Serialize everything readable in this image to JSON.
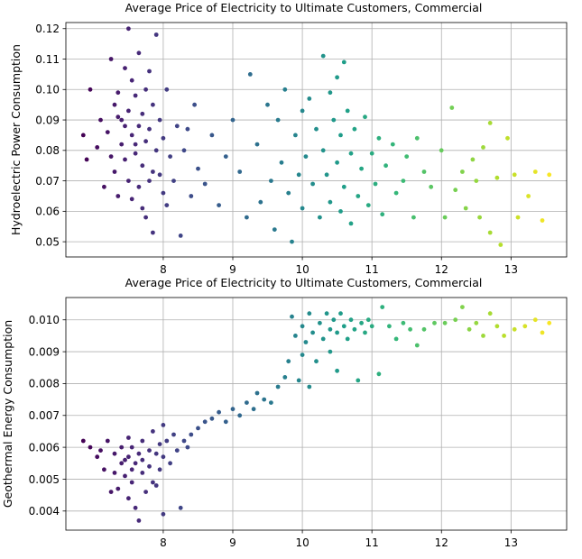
{
  "chart_data": [
    {
      "type": "scatter",
      "title": "Average Price of Electricity to Ultimate Customers, Commercial",
      "xlabel": "",
      "ylabel": "Hydroelectric Power Consumption",
      "xlim": [
        6.6,
        13.8
      ],
      "ylim": [
        0.045,
        0.122
      ],
      "xticks": [
        8,
        9,
        10,
        11,
        12,
        13
      ],
      "yticks": [
        0.05,
        0.06,
        0.07,
        0.08,
        0.09,
        0.1,
        0.11,
        0.12
      ],
      "yticklabels": [
        "0.05",
        "0.06",
        "0.07",
        "0.08",
        "0.09",
        "0.10",
        "0.11",
        "0.12"
      ],
      "grid": true,
      "colormap": "viridis",
      "color_by": "x",
      "points": [
        [
          6.85,
          0.085
        ],
        [
          6.9,
          0.077
        ],
        [
          6.95,
          0.1
        ],
        [
          7.05,
          0.081
        ],
        [
          7.1,
          0.09
        ],
        [
          7.15,
          0.068
        ],
        [
          7.2,
          0.086
        ],
        [
          7.25,
          0.078
        ],
        [
          7.25,
          0.11
        ],
        [
          7.3,
          0.095
        ],
        [
          7.3,
          0.073
        ],
        [
          7.35,
          0.099
        ],
        [
          7.35,
          0.065
        ],
        [
          7.4,
          0.09
        ],
        [
          7.4,
          0.082
        ],
        [
          7.45,
          0.107
        ],
        [
          7.45,
          0.077
        ],
        [
          7.5,
          0.12
        ],
        [
          7.5,
          0.093
        ],
        [
          7.5,
          0.07
        ],
        [
          7.55,
          0.103
        ],
        [
          7.55,
          0.085
        ],
        [
          7.55,
          0.064
        ],
        [
          7.6,
          0.098
        ],
        [
          7.6,
          0.079
        ],
        [
          7.65,
          0.112
        ],
        [
          7.65,
          0.088
        ],
        [
          7.65,
          0.068
        ],
        [
          7.7,
          0.092
        ],
        [
          7.7,
          0.075
        ],
        [
          7.75,
          0.1
        ],
        [
          7.75,
          0.083
        ],
        [
          7.75,
          0.058
        ],
        [
          7.8,
          0.106
        ],
        [
          7.8,
          0.087
        ],
        [
          7.8,
          0.07
        ],
        [
          7.85,
          0.053
        ],
        [
          7.85,
          0.095
        ],
        [
          7.9,
          0.118
        ],
        [
          7.9,
          0.08
        ],
        [
          7.95,
          0.072
        ],
        [
          7.95,
          0.09
        ],
        [
          8.0,
          0.084
        ],
        [
          8.0,
          0.066
        ],
        [
          8.05,
          0.1
        ],
        [
          8.05,
          0.062
        ],
        [
          8.1,
          0.078
        ],
        [
          8.15,
          0.07
        ],
        [
          8.2,
          0.088
        ],
        [
          8.25,
          0.052
        ],
        [
          7.35,
          0.091
        ],
        [
          7.45,
          0.088
        ],
        [
          7.6,
          0.082
        ],
        [
          7.7,
          0.061
        ],
        [
          7.85,
          0.073
        ],
        [
          8.3,
          0.08
        ],
        [
          8.35,
          0.087
        ],
        [
          8.4,
          0.065
        ],
        [
          8.45,
          0.095
        ],
        [
          8.5,
          0.074
        ],
        [
          8.6,
          0.069
        ],
        [
          8.7,
          0.085
        ],
        [
          8.8,
          0.062
        ],
        [
          8.9,
          0.078
        ],
        [
          9.0,
          0.09
        ],
        [
          9.1,
          0.073
        ],
        [
          9.2,
          0.058
        ],
        [
          9.25,
          0.105
        ],
        [
          9.35,
          0.082
        ],
        [
          9.4,
          0.063
        ],
        [
          9.5,
          0.095
        ],
        [
          9.55,
          0.07
        ],
        [
          9.6,
          0.054
        ],
        [
          9.65,
          0.09
        ],
        [
          9.7,
          0.076
        ],
        [
          9.75,
          0.1
        ],
        [
          9.8,
          0.066
        ],
        [
          9.85,
          0.05
        ],
        [
          9.9,
          0.085
        ],
        [
          9.95,
          0.072
        ],
        [
          10.0,
          0.093
        ],
        [
          10.0,
          0.061
        ],
        [
          10.05,
          0.078
        ],
        [
          10.1,
          0.097
        ],
        [
          10.15,
          0.069
        ],
        [
          10.2,
          0.087
        ],
        [
          10.25,
          0.058
        ],
        [
          10.3,
          0.111
        ],
        [
          10.3,
          0.08
        ],
        [
          10.35,
          0.072
        ],
        [
          10.4,
          0.099
        ],
        [
          10.4,
          0.063
        ],
        [
          10.45,
          0.09
        ],
        [
          10.5,
          0.076
        ],
        [
          10.5,
          0.104
        ],
        [
          10.55,
          0.06
        ],
        [
          10.55,
          0.085
        ],
        [
          10.6,
          0.109
        ],
        [
          10.6,
          0.068
        ],
        [
          10.65,
          0.093
        ],
        [
          10.7,
          0.079
        ],
        [
          10.7,
          0.056
        ],
        [
          10.75,
          0.087
        ],
        [
          10.8,
          0.065
        ],
        [
          10.85,
          0.074
        ],
        [
          10.9,
          0.091
        ],
        [
          10.95,
          0.062
        ],
        [
          11.0,
          0.079
        ],
        [
          11.05,
          0.069
        ],
        [
          11.1,
          0.084
        ],
        [
          11.15,
          0.059
        ],
        [
          11.2,
          0.075
        ],
        [
          11.3,
          0.082
        ],
        [
          11.35,
          0.066
        ],
        [
          11.45,
          0.07
        ],
        [
          11.5,
          0.078
        ],
        [
          11.6,
          0.058
        ],
        [
          11.65,
          0.084
        ],
        [
          11.75,
          0.073
        ],
        [
          11.85,
          0.068
        ],
        [
          12.0,
          0.08
        ],
        [
          12.05,
          0.058
        ],
        [
          12.15,
          0.094
        ],
        [
          12.2,
          0.067
        ],
        [
          12.3,
          0.073
        ],
        [
          12.35,
          0.061
        ],
        [
          12.45,
          0.077
        ],
        [
          12.5,
          0.07
        ],
        [
          12.55,
          0.058
        ],
        [
          12.6,
          0.081
        ],
        [
          12.7,
          0.089
        ],
        [
          12.7,
          0.053
        ],
        [
          12.8,
          0.071
        ],
        [
          12.85,
          0.049
        ],
        [
          12.95,
          0.084
        ],
        [
          13.05,
          0.072
        ],
        [
          13.1,
          0.058
        ],
        [
          13.25,
          0.065
        ],
        [
          13.35,
          0.073
        ],
        [
          13.45,
          0.057
        ],
        [
          13.55,
          0.072
        ]
      ]
    },
    {
      "type": "scatter",
      "title": "Average Price of Electricity to Ultimate Customers, Commercial",
      "xlabel": "",
      "ylabel": "Geothermal Energy Consumption",
      "xlim": [
        6.6,
        13.8
      ],
      "ylim": [
        0.0034,
        0.0107
      ],
      "xticks": [
        8,
        9,
        10,
        11,
        12,
        13
      ],
      "yticks": [
        0.004,
        0.005,
        0.006,
        0.007,
        0.008,
        0.009,
        0.01
      ],
      "yticklabels": [
        "0.004",
        "0.005",
        "0.006",
        "0.007",
        "0.008",
        "0.009",
        "0.010"
      ],
      "grid": true,
      "colormap": "viridis",
      "color_by": "x",
      "points": [
        [
          6.85,
          0.0062
        ],
        [
          6.95,
          0.006
        ],
        [
          7.05,
          0.0057
        ],
        [
          7.1,
          0.0059
        ],
        [
          7.15,
          0.0053
        ],
        [
          7.2,
          0.0062
        ],
        [
          7.25,
          0.0046
        ],
        [
          7.3,
          0.0058
        ],
        [
          7.3,
          0.0052
        ],
        [
          7.35,
          0.0047
        ],
        [
          7.4,
          0.006
        ],
        [
          7.4,
          0.0055
        ],
        [
          7.45,
          0.0051
        ],
        [
          7.5,
          0.0063
        ],
        [
          7.5,
          0.0057
        ],
        [
          7.5,
          0.0044
        ],
        [
          7.55,
          0.006
        ],
        [
          7.55,
          0.0049
        ],
        [
          7.6,
          0.0055
        ],
        [
          7.6,
          0.0041
        ],
        [
          7.65,
          0.0058
        ],
        [
          7.65,
          0.0037
        ],
        [
          7.7,
          0.0062
        ],
        [
          7.7,
          0.0052
        ],
        [
          7.75,
          0.0046
        ],
        [
          7.8,
          0.0059
        ],
        [
          7.8,
          0.0054
        ],
        [
          7.85,
          0.0065
        ],
        [
          7.85,
          0.0049
        ],
        [
          7.9,
          0.0058
        ],
        [
          7.95,
          0.0061
        ],
        [
          7.95,
          0.0053
        ],
        [
          8.0,
          0.0067
        ],
        [
          8.0,
          0.0057
        ],
        [
          8.0,
          0.0039
        ],
        [
          8.05,
          0.0062
        ],
        [
          8.1,
          0.0055
        ],
        [
          8.15,
          0.0064
        ],
        [
          8.2,
          0.0059
        ],
        [
          8.25,
          0.0041
        ],
        [
          7.45,
          0.0056
        ],
        [
          7.55,
          0.0053
        ],
        [
          7.7,
          0.0056
        ],
        [
          7.9,
          0.0048
        ],
        [
          8.3,
          0.0062
        ],
        [
          8.35,
          0.006
        ],
        [
          8.4,
          0.0064
        ],
        [
          8.5,
          0.0066
        ],
        [
          8.6,
          0.0068
        ],
        [
          8.7,
          0.0069
        ],
        [
          8.8,
          0.0071
        ],
        [
          8.9,
          0.0068
        ],
        [
          9.0,
          0.0072
        ],
        [
          9.1,
          0.007
        ],
        [
          9.2,
          0.0074
        ],
        [
          9.3,
          0.0072
        ],
        [
          9.35,
          0.0077
        ],
        [
          9.45,
          0.0075
        ],
        [
          9.55,
          0.0074
        ],
        [
          9.65,
          0.0079
        ],
        [
          9.75,
          0.0082
        ],
        [
          9.8,
          0.0087
        ],
        [
          9.85,
          0.0101
        ],
        [
          9.9,
          0.0095
        ],
        [
          9.95,
          0.0081
        ],
        [
          10.0,
          0.0098
        ],
        [
          10.0,
          0.0089
        ],
        [
          10.05,
          0.0093
        ],
        [
          10.1,
          0.0102
        ],
        [
          10.1,
          0.0079
        ],
        [
          10.15,
          0.0096
        ],
        [
          10.2,
          0.0087
        ],
        [
          10.25,
          0.0099
        ],
        [
          10.3,
          0.0094
        ],
        [
          10.35,
          0.0102
        ],
        [
          10.4,
          0.0097
        ],
        [
          10.4,
          0.009
        ],
        [
          10.45,
          0.01
        ],
        [
          10.5,
          0.0096
        ],
        [
          10.5,
          0.0084
        ],
        [
          10.55,
          0.0102
        ],
        [
          10.6,
          0.0098
        ],
        [
          10.65,
          0.0094
        ],
        [
          10.7,
          0.01
        ],
        [
          10.75,
          0.0097
        ],
        [
          10.8,
          0.0081
        ],
        [
          10.85,
          0.0099
        ],
        [
          10.9,
          0.0096
        ],
        [
          10.95,
          0.01
        ],
        [
          11.0,
          0.0098
        ],
        [
          11.1,
          0.0083
        ],
        [
          11.15,
          0.0104
        ],
        [
          11.25,
          0.0098
        ],
        [
          11.35,
          0.0094
        ],
        [
          11.45,
          0.0099
        ],
        [
          11.55,
          0.0097
        ],
        [
          11.65,
          0.0092
        ],
        [
          11.75,
          0.0097
        ],
        [
          11.9,
          0.0099
        ],
        [
          12.05,
          0.0099
        ],
        [
          12.2,
          0.01
        ],
        [
          12.3,
          0.0104
        ],
        [
          12.4,
          0.0097
        ],
        [
          12.5,
          0.0099
        ],
        [
          12.6,
          0.0095
        ],
        [
          12.7,
          0.0102
        ],
        [
          12.8,
          0.0098
        ],
        [
          12.9,
          0.0095
        ],
        [
          13.05,
          0.0097
        ],
        [
          13.2,
          0.0098
        ],
        [
          13.35,
          0.01
        ],
        [
          13.45,
          0.0096
        ],
        [
          13.55,
          0.0099
        ]
      ]
    }
  ]
}
